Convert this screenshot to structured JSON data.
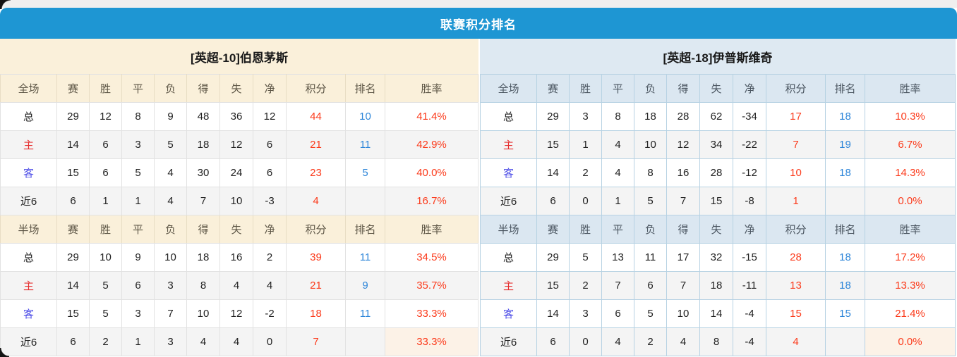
{
  "title": "联赛积分排名",
  "columns": [
    "赛",
    "胜",
    "平",
    "负",
    "得",
    "失",
    "净",
    "积分",
    "排名",
    "胜率"
  ],
  "colors": {
    "title_bar_blue": "#1e96d3",
    "left_panel_header_bg": "#faf0da",
    "right_panel_header_bg": "#dee9f2",
    "points_and_rate_red": "#fb3b1c",
    "rank_blue": "#2e86d9",
    "home_label_red": "#e63030",
    "away_label_blue": "#5353e8",
    "stripe_grey": "#f4f4f4"
  },
  "teams": [
    {
      "side": "left",
      "name": "[英超-10]伯恩茅斯",
      "sections": [
        {
          "label": "全场",
          "rows": [
            {
              "label": "总",
              "values": [
                "29",
                "12",
                "8",
                "9",
                "48",
                "36",
                "12"
              ],
              "points": "44",
              "rank": "10",
              "rate": "41.4%"
            },
            {
              "label": "主",
              "values": [
                "14",
                "6",
                "3",
                "5",
                "18",
                "12",
                "6"
              ],
              "points": "21",
              "rank": "11",
              "rate": "42.9%"
            },
            {
              "label": "客",
              "values": [
                "15",
                "6",
                "5",
                "4",
                "30",
                "24",
                "6"
              ],
              "points": "23",
              "rank": "5",
              "rate": "40.0%"
            },
            {
              "label": "近6",
              "values": [
                "6",
                "1",
                "1",
                "4",
                "7",
                "10",
                "-3"
              ],
              "points": "4",
              "rank": "",
              "rate": "16.7%"
            }
          ]
        },
        {
          "label": "半场",
          "rows": [
            {
              "label": "总",
              "values": [
                "29",
                "10",
                "9",
                "10",
                "18",
                "16",
                "2"
              ],
              "points": "39",
              "rank": "11",
              "rate": "34.5%"
            },
            {
              "label": "主",
              "values": [
                "14",
                "5",
                "6",
                "3",
                "8",
                "4",
                "4"
              ],
              "points": "21",
              "rank": "9",
              "rate": "35.7%"
            },
            {
              "label": "客",
              "values": [
                "15",
                "5",
                "3",
                "7",
                "10",
                "12",
                "-2"
              ],
              "points": "18",
              "rank": "11",
              "rate": "33.3%"
            },
            {
              "label": "近6",
              "values": [
                "6",
                "2",
                "1",
                "3",
                "4",
                "4",
                "0"
              ],
              "points": "7",
              "rank": "",
              "rate": "33.3%"
            }
          ]
        }
      ]
    },
    {
      "side": "right",
      "name": "[英超-18]伊普斯维奇",
      "sections": [
        {
          "label": "全场",
          "rows": [
            {
              "label": "总",
              "values": [
                "29",
                "3",
                "8",
                "18",
                "28",
                "62",
                "-34"
              ],
              "points": "17",
              "rank": "18",
              "rate": "10.3%"
            },
            {
              "label": "主",
              "values": [
                "15",
                "1",
                "4",
                "10",
                "12",
                "34",
                "-22"
              ],
              "points": "7",
              "rank": "19",
              "rate": "6.7%"
            },
            {
              "label": "客",
              "values": [
                "14",
                "2",
                "4",
                "8",
                "16",
                "28",
                "-12"
              ],
              "points": "10",
              "rank": "18",
              "rate": "14.3%"
            },
            {
              "label": "近6",
              "values": [
                "6",
                "0",
                "1",
                "5",
                "7",
                "15",
                "-8"
              ],
              "points": "1",
              "rank": "",
              "rate": "0.0%"
            }
          ]
        },
        {
          "label": "半场",
          "rows": [
            {
              "label": "总",
              "values": [
                "29",
                "5",
                "13",
                "11",
                "17",
                "32",
                "-15"
              ],
              "points": "28",
              "rank": "18",
              "rate": "17.2%"
            },
            {
              "label": "主",
              "values": [
                "15",
                "2",
                "7",
                "6",
                "7",
                "18",
                "-11"
              ],
              "points": "13",
              "rank": "18",
              "rate": "13.3%"
            },
            {
              "label": "客",
              "values": [
                "14",
                "3",
                "6",
                "5",
                "10",
                "14",
                "-4"
              ],
              "points": "15",
              "rank": "15",
              "rate": "21.4%"
            },
            {
              "label": "近6",
              "values": [
                "6",
                "0",
                "4",
                "2",
                "4",
                "8",
                "-4"
              ],
              "points": "4",
              "rank": "",
              "rate": "0.0%"
            }
          ]
        }
      ]
    }
  ]
}
